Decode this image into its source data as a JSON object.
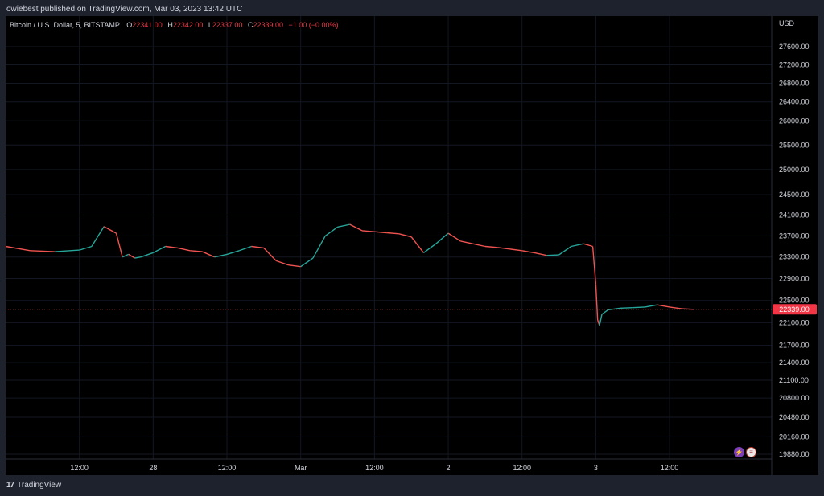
{
  "header": {
    "published_by": "owiebest published on TradingView.com, Mar 03, 2023 13:42 UTC"
  },
  "legend": {
    "symbol": "Bitcoin / U.S. Dollar, 5, BITSTAMP",
    "o_label": "O",
    "o_value": "22341.00",
    "h_label": "H",
    "h_value": "22342.00",
    "l_label": "L",
    "l_value": "22337.00",
    "c_label": "C",
    "c_value": "22339.00",
    "change": "−1.00 (−0.00%)"
  },
  "price_axis": {
    "currency": "USD",
    "current_price_label": "22339.00"
  },
  "footer": {
    "brand": "TradingView",
    "brand_mark": "17"
  },
  "colors": {
    "background": "#000000",
    "frame": "#1e222d",
    "up": "#26a69a",
    "down": "#ef5350",
    "price_line": "#f23645",
    "grid": "#131722",
    "text": "#d1d4dc"
  },
  "chart_data": {
    "type": "line",
    "title": "Bitcoin / U.S. Dollar, 5, BITSTAMP",
    "y_scale": "log",
    "ylim": [
      19700,
      28000
    ],
    "y_ticks": [
      27600,
      27200,
      26800,
      26400,
      26000,
      25500,
      25000,
      24500,
      24100,
      23700,
      23300,
      22900,
      22500,
      22100,
      21700,
      21400,
      21100,
      20800,
      20480,
      20160,
      19880
    ],
    "x_tick_labels": [
      "12:00",
      "28",
      "12:00",
      "Mar",
      "12:00",
      "2",
      "12:00",
      "3",
      "12:00"
    ],
    "x_tick_hours": [
      12,
      24,
      36,
      48,
      60,
      72,
      84,
      96,
      108
    ],
    "xlim_hours": [
      0,
      122
    ],
    "current_price": 22339,
    "series": [
      {
        "x_hours": [
          0,
          4,
          8,
          12,
          14,
          16,
          18,
          19,
          20,
          21,
          22,
          24,
          26,
          28,
          30,
          32,
          34,
          36,
          38,
          40,
          42,
          44,
          46,
          48,
          50,
          52,
          54,
          56,
          58,
          60,
          62,
          64,
          66,
          68,
          70,
          72,
          74,
          76,
          78,
          80,
          82,
          84,
          86,
          88,
          90,
          92,
          94,
          95.5,
          96,
          96.3,
          96.6,
          97,
          98,
          100,
          102,
          104,
          106,
          108,
          110,
          112
        ],
        "values": [
          23500,
          23420,
          23400,
          23430,
          23500,
          23880,
          23750,
          23300,
          23350,
          23280,
          23300,
          23380,
          23500,
          23470,
          23420,
          23400,
          23300,
          23350,
          23420,
          23500,
          23470,
          23230,
          23150,
          23120,
          23280,
          23700,
          23870,
          23920,
          23800,
          23780,
          23760,
          23740,
          23680,
          23380,
          23550,
          23750,
          23600,
          23550,
          23500,
          23480,
          23450,
          23420,
          23380,
          23330,
          23340,
          23500,
          23550,
          23500,
          22800,
          22150,
          22050,
          22250,
          22330,
          22360,
          22370,
          22380,
          22420,
          22380,
          22350,
          22339
        ]
      }
    ]
  }
}
